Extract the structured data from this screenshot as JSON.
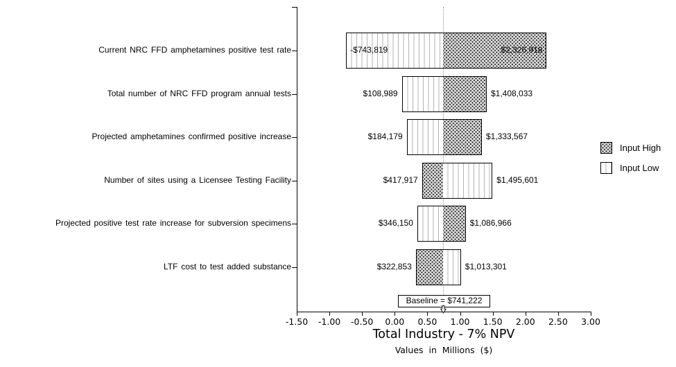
{
  "chart_data": {
    "type": "bar",
    "variant": "tornado-sensitivity",
    "title": "Total Industry - 7% NPV",
    "subtitle": "Values in Millions ($)",
    "baseline": {
      "label": "Baseline = $741,222",
      "usd": 741222
    },
    "x_axis": {
      "min": -1.5,
      "max": 3.0,
      "tick_step": 0.5,
      "tick_labels": [
        "-1.50",
        "-1.00",
        "-0.50",
        "0.00",
        "0.50",
        "1.00",
        "1.50",
        "2.00",
        "2.50",
        "3.00"
      ]
    },
    "legend": [
      {
        "label": "Input High",
        "pattern": "high"
      },
      {
        "label": "Input Low",
        "pattern": "low"
      }
    ],
    "rows": [
      {
        "category": "Current NRC FFD amphetamines positive test rate",
        "input_low": {
          "usd": -743819,
          "label": "-$743,819"
        },
        "input_high": {
          "usd": 2326918,
          "label": "$2,326,918"
        },
        "value_labels_inside": true
      },
      {
        "category": "Total number of NRC FFD program annual tests",
        "input_low": {
          "usd": 108989,
          "label": "$108,989"
        },
        "input_high": {
          "usd": 1408033,
          "label": "$1,408,033"
        },
        "value_labels_inside": false
      },
      {
        "category": "Projected amphetamines confirmed positive increase",
        "input_low": {
          "usd": 184179,
          "label": "$184,179"
        },
        "input_high": {
          "usd": 1333567,
          "label": "$1,333,567"
        },
        "value_labels_inside": false
      },
      {
        "category": "Number of sites using a Licensee Testing Facility",
        "input_low": {
          "usd": 1495601,
          "label": "$1,495,601"
        },
        "input_high": {
          "usd": 417917,
          "label": "$417,917"
        },
        "value_labels_inside": false
      },
      {
        "category": "Projected positive test rate increase for subversion specimens",
        "input_low": {
          "usd": 346150,
          "label": "$346,150"
        },
        "input_high": {
          "usd": 1086966,
          "label": "$1,086,966"
        },
        "value_labels_inside": false
      },
      {
        "category": "LTF cost to test added substance",
        "input_low": {
          "usd": 1013301,
          "label": "$1,013,301"
        },
        "input_high": {
          "usd": 322853,
          "label": "$322,853"
        },
        "value_labels_inside": false
      }
    ],
    "colors": {
      "high_fill": "#d6d6d6",
      "high_dots": "#151515",
      "low_fill": "#ffffff",
      "low_lines": "#b3b3b3",
      "bar_border": "#000000",
      "baseline_line": "#8f8f8f",
      "text": "#000000"
    }
  }
}
